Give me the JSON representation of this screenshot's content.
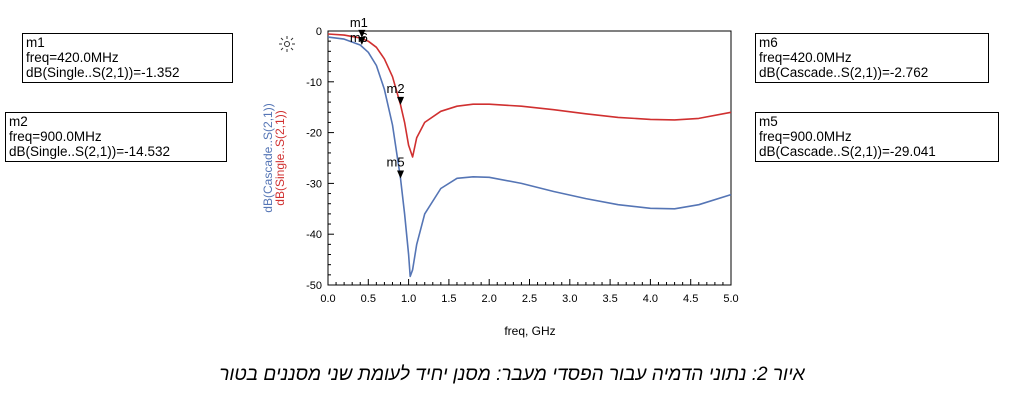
{
  "markers_left": [
    {
      "name": "m1",
      "freq": "freq=420.0MHz",
      "value": "dB(Single..S(2,1))=-1.352"
    },
    {
      "name": "m2",
      "freq": "freq=900.0MHz",
      "value": "dB(Single..S(2,1))=-14.532"
    }
  ],
  "markers_right": [
    {
      "name": "m6",
      "freq": "freq=420.0MHz",
      "value": "dB(Cascade..S(2,1))=-2.762"
    },
    {
      "name": "m5",
      "freq": "freq=900.0MHz",
      "value": "dB(Cascade..S(2,1))=-29.041"
    }
  ],
  "caption": "איור 2:  נתוני הדמיה עבור הפסדי מעבר: מסנן יחיד לעומת שני מסננים בטור",
  "chart_data": {
    "type": "line",
    "xlabel": "freq, GHz",
    "ylabel_single": "dB(Single..S(2,1))",
    "ylabel_cascade": "dB(Cascade..S(2,1))",
    "xlim": [
      0,
      5
    ],
    "ylim": [
      -50,
      0
    ],
    "x_ticks": [
      "0.0",
      "0.5",
      "1.0",
      "1.5",
      "2.0",
      "2.5",
      "3.0",
      "3.5",
      "4.0",
      "4.5",
      "5.0"
    ],
    "y_ticks": [
      "0",
      "-10",
      "-20",
      "-30",
      "-40",
      "-50"
    ],
    "colors": {
      "single": "#d03030",
      "cascade": "#5575b5"
    },
    "series": [
      {
        "name": "dB(Single..S(2,1))",
        "key": "single",
        "x": [
          0,
          0.2,
          0.4,
          0.5,
          0.6,
          0.7,
          0.8,
          0.9,
          0.95,
          1.0,
          1.05,
          1.1,
          1.2,
          1.4,
          1.6,
          1.8,
          2.0,
          2.4,
          2.8,
          3.2,
          3.6,
          4.0,
          4.3,
          4.6,
          5.0
        ],
        "y": [
          -0.6,
          -0.8,
          -1.35,
          -2.0,
          -3.2,
          -5.5,
          -9.0,
          -14.5,
          -18.0,
          -22.5,
          -24.8,
          -21.0,
          -18.0,
          -15.8,
          -14.8,
          -14.4,
          -14.4,
          -14.8,
          -15.5,
          -16.3,
          -17.0,
          -17.4,
          -17.5,
          -17.2,
          -16.0
        ]
      },
      {
        "name": "dB(Cascade..S(2,1))",
        "key": "cascade",
        "x": [
          0,
          0.2,
          0.4,
          0.5,
          0.6,
          0.7,
          0.8,
          0.9,
          0.95,
          1.0,
          1.02,
          1.05,
          1.1,
          1.2,
          1.4,
          1.6,
          1.8,
          2.0,
          2.4,
          2.8,
          3.2,
          3.6,
          4.0,
          4.3,
          4.6,
          5.0
        ],
        "y": [
          -1.2,
          -1.6,
          -2.76,
          -4.2,
          -6.8,
          -11.5,
          -18.5,
          -29.0,
          -36.0,
          -44.0,
          -48.3,
          -47.0,
          -42.0,
          -36.0,
          -31.0,
          -29.0,
          -28.7,
          -28.8,
          -30.0,
          -31.6,
          -33.0,
          -34.2,
          -34.9,
          -35.0,
          -34.2,
          -32.2
        ]
      }
    ],
    "markers": [
      {
        "label": "m1",
        "x": 0.42,
        "y": -1.352,
        "series": "single"
      },
      {
        "label": "m6",
        "x": 0.42,
        "y": -2.762,
        "series": "cascade"
      },
      {
        "label": "m2",
        "x": 0.9,
        "y": -14.532,
        "series": "single"
      },
      {
        "label": "m5",
        "x": 0.9,
        "y": -29.041,
        "series": "cascade"
      }
    ]
  }
}
